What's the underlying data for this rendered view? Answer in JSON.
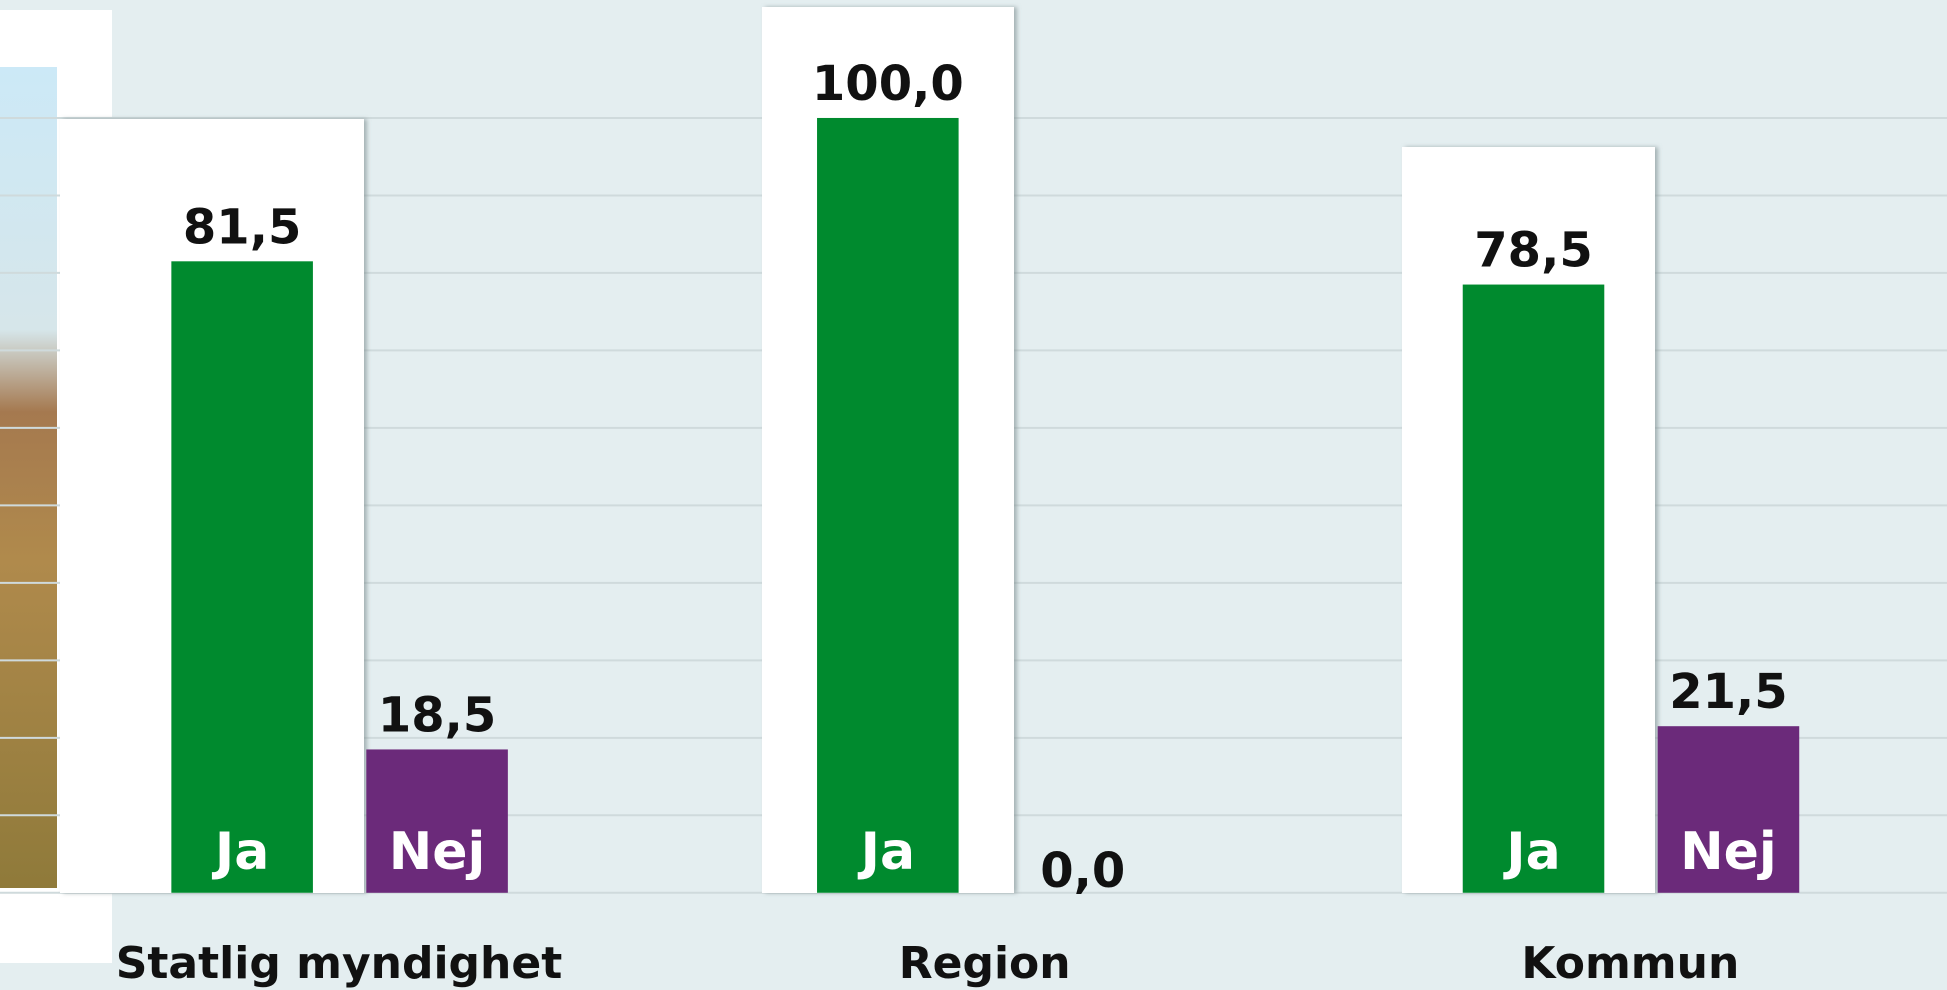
{
  "chart_data": {
    "type": "bar",
    "categories": [
      "Statlig myndighet",
      "Region",
      "Kommun"
    ],
    "series": [
      {
        "name": "Ja",
        "color": "#008a2e",
        "values": [
          81.5,
          100,
          78.5
        ],
        "value_labels": [
          "81,5",
          "100,0",
          "78,5"
        ]
      },
      {
        "name": "Nej",
        "color": "#6b2a7a",
        "values": [
          18.5,
          0,
          21.5
        ],
        "value_labels": [
          "18,5",
          "0,0",
          "21,5"
        ]
      }
    ],
    "ylim": [
      0,
      100
    ],
    "yticks": [
      0,
      10,
      20,
      30,
      40,
      50,
      60,
      70,
      80,
      90,
      100
    ],
    "grid": true
  }
}
